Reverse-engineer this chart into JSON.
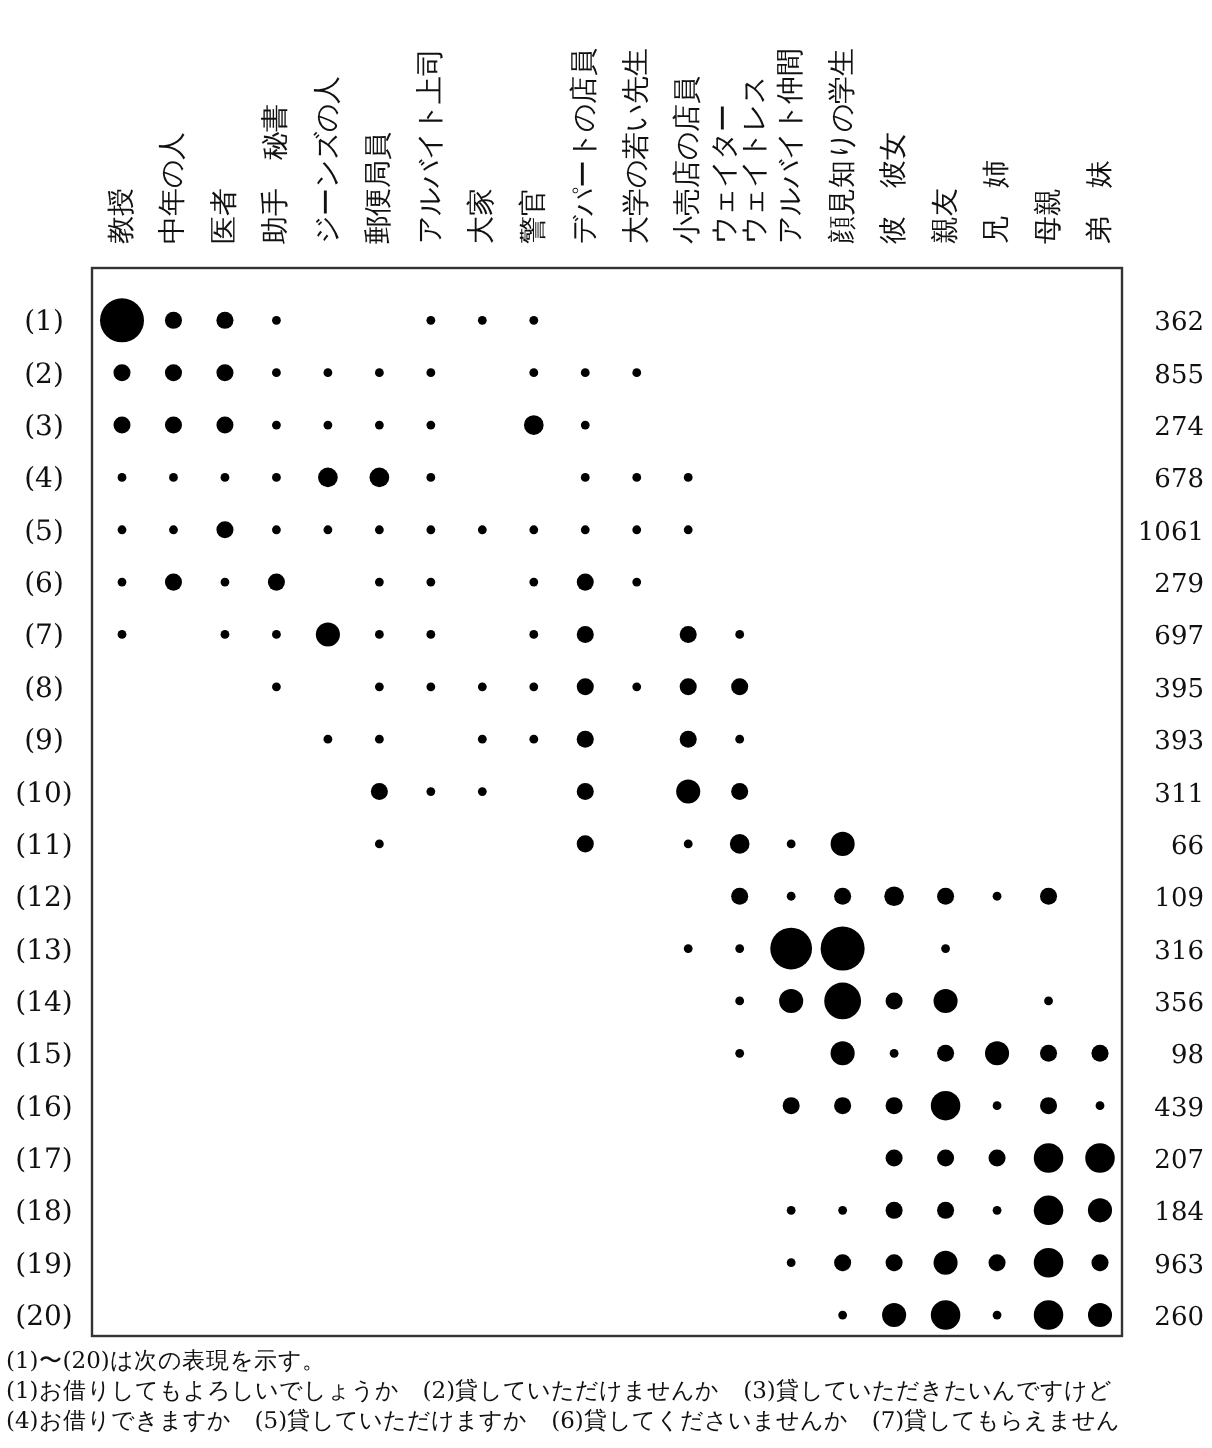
{
  "chart_data": {
    "type": "bubble",
    "categories": [
      "教授",
      "中年の人",
      "医者",
      "助手　秘書",
      "ジーンズの人",
      "郵便局員",
      "アルバイト上司",
      "大家",
      "警官",
      "デパートの店員",
      "大学の若い先生",
      "小売店の店員",
      "ウェイターウェイトレス",
      "アルバイト仲間",
      "顔見知りの学生",
      "彼　彼女",
      "親友",
      "兄　姉",
      "母親",
      "弟　妹"
    ],
    "ylim": [
      20.4,
      0
    ],
    "yticks": [
      {
        "value": 1,
        "label": "(1)"
      },
      {
        "value": 2,
        "label": "(2)"
      },
      {
        "value": 3,
        "label": "(3)"
      },
      {
        "value": 4,
        "label": "(4)"
      },
      {
        "value": 5,
        "label": "(5)"
      },
      {
        "value": 6,
        "label": "(6)"
      },
      {
        "value": 7,
        "label": "(7)"
      },
      {
        "value": 8,
        "label": "(8)"
      },
      {
        "value": 9,
        "label": "(9)"
      },
      {
        "value": 10,
        "label": "(10)"
      },
      {
        "value": 11,
        "label": "(11)"
      },
      {
        "value": 12,
        "label": "(12)"
      },
      {
        "value": 13,
        "label": "(13)"
      },
      {
        "value": 14,
        "label": "(14)"
      },
      {
        "value": 15,
        "label": "(15)"
      },
      {
        "value": 16,
        "label": "(16)"
      },
      {
        "value": 17,
        "label": "(17)"
      },
      {
        "value": 18,
        "label": "(18)"
      },
      {
        "value": 19,
        "label": "(19)"
      },
      {
        "value": 20,
        "label": "(20)"
      }
    ],
    "y2_categories": [
      "362",
      "855",
      "274",
      "678",
      "1061",
      "279",
      "697",
      "395",
      "393",
      "311",
      "66",
      "109",
      "316",
      "356",
      "98",
      "439",
      "207",
      "184",
      "963",
      "260"
    ],
    "series": [
      {
        "color": "#000000",
        "values": [
          1,
          1,
          1,
          1,
          null,
          null,
          1,
          1,
          1,
          null,
          null,
          null,
          null,
          null,
          null,
          null,
          null,
          null,
          null,
          null
        ],
        "sizes": [
          1,
          0.15,
          0.15,
          0.04,
          null,
          null,
          0.04,
          0.04,
          0.04,
          null,
          null,
          null,
          null,
          null,
          null,
          null,
          null,
          null,
          null,
          null
        ]
      },
      {
        "color": "#000000",
        "values": [
          2,
          2,
          2,
          2,
          2,
          2,
          2,
          null,
          2,
          2,
          2,
          null,
          null,
          null,
          null,
          null,
          null,
          null,
          null,
          null
        ],
        "sizes": [
          0.15,
          0.15,
          0.15,
          0.04,
          0.04,
          0.04,
          0.04,
          null,
          0.04,
          0.04,
          0.04,
          null,
          null,
          null,
          null,
          null,
          null,
          null,
          null,
          null
        ]
      },
      {
        "color": "#000000",
        "values": [
          3,
          3,
          3,
          3,
          3,
          3,
          3,
          null,
          3,
          3,
          null,
          null,
          null,
          null,
          null,
          null,
          null,
          null,
          null,
          null
        ],
        "sizes": [
          0.15,
          0.15,
          0.15,
          0.04,
          0.04,
          0.04,
          0.04,
          null,
          0.2,
          0.04,
          null,
          null,
          null,
          null,
          null,
          null,
          null,
          null,
          null,
          null
        ]
      },
      {
        "color": "#000000",
        "values": [
          4,
          4,
          4,
          4,
          4,
          4,
          4,
          null,
          null,
          4,
          4,
          4,
          null,
          null,
          null,
          null,
          null,
          null,
          null,
          null
        ],
        "sizes": [
          0.04,
          0.04,
          0.04,
          0.04,
          0.2,
          0.2,
          0.04,
          null,
          null,
          0.04,
          0.04,
          0.04,
          null,
          null,
          null,
          null,
          null,
          null,
          null,
          null
        ]
      },
      {
        "color": "#000000",
        "values": [
          5,
          5,
          5,
          5,
          5,
          5,
          5,
          5,
          5,
          5,
          5,
          5,
          null,
          null,
          null,
          null,
          null,
          null,
          null,
          null
        ],
        "sizes": [
          0.04,
          0.04,
          0.15,
          0.04,
          0.04,
          0.04,
          0.04,
          0.04,
          0.04,
          0.04,
          0.04,
          0.04,
          null,
          null,
          null,
          null,
          null,
          null,
          null,
          null
        ]
      },
      {
        "color": "#000000",
        "values": [
          6,
          6,
          6,
          6,
          null,
          6,
          6,
          null,
          6,
          6,
          6,
          null,
          null,
          null,
          null,
          null,
          null,
          null,
          null,
          null
        ],
        "sizes": [
          0.04,
          0.15,
          0.04,
          0.15,
          null,
          0.04,
          0.04,
          null,
          0.04,
          0.15,
          0.04,
          null,
          null,
          null,
          null,
          null,
          null,
          null,
          null,
          null
        ]
      },
      {
        "color": "#000000",
        "values": [
          7,
          null,
          7,
          7,
          7,
          7,
          7,
          null,
          7,
          7,
          null,
          7,
          7,
          null,
          null,
          null,
          null,
          null,
          null,
          null
        ],
        "sizes": [
          0.04,
          null,
          0.04,
          0.04,
          0.3,
          0.04,
          0.04,
          null,
          0.04,
          0.15,
          null,
          0.15,
          0.04,
          null,
          null,
          null,
          null,
          null,
          null,
          null
        ]
      },
      {
        "color": "#000000",
        "values": [
          null,
          null,
          null,
          8,
          null,
          8,
          8,
          8,
          8,
          8,
          8,
          8,
          8,
          null,
          null,
          null,
          null,
          null,
          null,
          null
        ],
        "sizes": [
          null,
          null,
          null,
          0.04,
          null,
          0.04,
          0.04,
          0.04,
          0.04,
          0.15,
          0.04,
          0.15,
          0.15,
          null,
          null,
          null,
          null,
          null,
          null,
          null
        ]
      },
      {
        "color": "#000000",
        "values": [
          null,
          null,
          null,
          null,
          9,
          9,
          null,
          9,
          9,
          9,
          null,
          9,
          9,
          null,
          null,
          null,
          null,
          null,
          null,
          null
        ],
        "sizes": [
          null,
          null,
          null,
          null,
          0.04,
          0.04,
          null,
          0.04,
          0.04,
          0.15,
          null,
          0.15,
          0.04,
          null,
          null,
          null,
          null,
          null,
          null,
          null
        ]
      },
      {
        "color": "#000000",
        "values": [
          null,
          null,
          null,
          null,
          null,
          10,
          10,
          10,
          null,
          10,
          null,
          10,
          10,
          null,
          null,
          null,
          null,
          null,
          null,
          null
        ],
        "sizes": [
          null,
          null,
          null,
          null,
          null,
          0.15,
          0.04,
          0.04,
          null,
          0.15,
          null,
          0.3,
          0.15,
          null,
          null,
          null,
          null,
          null,
          null,
          null
        ]
      },
      {
        "color": "#000000",
        "values": [
          null,
          null,
          null,
          null,
          null,
          11,
          null,
          null,
          null,
          11,
          null,
          11,
          11,
          11,
          11,
          null,
          null,
          null,
          null,
          null
        ],
        "sizes": [
          null,
          null,
          null,
          null,
          null,
          0.04,
          null,
          null,
          null,
          0.15,
          null,
          0.04,
          0.2,
          0.04,
          0.3,
          null,
          null,
          null,
          null,
          null
        ]
      },
      {
        "color": "#000000",
        "values": [
          null,
          null,
          null,
          null,
          null,
          null,
          null,
          null,
          null,
          null,
          null,
          null,
          12,
          12,
          12,
          12,
          12,
          12,
          12,
          null
        ],
        "sizes": [
          null,
          null,
          null,
          null,
          null,
          null,
          null,
          null,
          null,
          null,
          null,
          null,
          0.15,
          0.04,
          0.15,
          0.2,
          0.15,
          0.04,
          0.15,
          null
        ]
      },
      {
        "color": "#000000",
        "values": [
          null,
          null,
          null,
          null,
          null,
          null,
          null,
          null,
          null,
          null,
          null,
          13,
          13,
          13,
          13,
          null,
          13,
          null,
          null,
          null
        ],
        "sizes": [
          null,
          null,
          null,
          null,
          null,
          null,
          null,
          null,
          null,
          null,
          null,
          0.04,
          0.04,
          0.9,
          1,
          null,
          0.04,
          null,
          null,
          null
        ]
      },
      {
        "color": "#000000",
        "values": [
          null,
          null,
          null,
          null,
          null,
          null,
          null,
          null,
          null,
          null,
          null,
          null,
          14,
          14,
          14,
          14,
          14,
          null,
          14,
          null
        ],
        "sizes": [
          null,
          null,
          null,
          null,
          null,
          null,
          null,
          null,
          null,
          null,
          null,
          null,
          0.04,
          0.3,
          0.7,
          0.15,
          0.3,
          null,
          0.04,
          null
        ]
      },
      {
        "color": "#000000",
        "values": [
          null,
          null,
          null,
          null,
          null,
          null,
          null,
          null,
          null,
          null,
          null,
          null,
          15,
          null,
          15,
          15,
          15,
          15,
          15,
          15
        ],
        "sizes": [
          null,
          null,
          null,
          null,
          null,
          null,
          null,
          null,
          null,
          null,
          null,
          null,
          0.04,
          null,
          0.3,
          0.04,
          0.15,
          0.3,
          0.15,
          0.15
        ]
      },
      {
        "color": "#000000",
        "values": [
          null,
          null,
          null,
          null,
          null,
          null,
          null,
          null,
          null,
          null,
          null,
          null,
          null,
          16,
          16,
          16,
          16,
          16,
          16,
          16
        ],
        "sizes": [
          null,
          null,
          null,
          null,
          null,
          null,
          null,
          null,
          null,
          null,
          null,
          null,
          null,
          0.15,
          0.15,
          0.15,
          0.45,
          0.04,
          0.15,
          0.04
        ]
      },
      {
        "color": "#000000",
        "values": [
          null,
          null,
          null,
          null,
          null,
          null,
          null,
          null,
          null,
          null,
          null,
          null,
          null,
          null,
          null,
          17,
          17,
          17,
          17,
          17
        ],
        "sizes": [
          null,
          null,
          null,
          null,
          null,
          null,
          null,
          null,
          null,
          null,
          null,
          null,
          null,
          null,
          null,
          0.15,
          0.15,
          0.15,
          0.45,
          0.45
        ]
      },
      {
        "color": "#000000",
        "values": [
          null,
          null,
          null,
          null,
          null,
          null,
          null,
          null,
          null,
          null,
          null,
          null,
          null,
          18,
          18,
          18,
          18,
          18,
          18,
          18
        ],
        "sizes": [
          null,
          null,
          null,
          null,
          null,
          null,
          null,
          null,
          null,
          null,
          null,
          null,
          null,
          0.04,
          0.04,
          0.15,
          0.15,
          0.04,
          0.45,
          0.3
        ]
      },
      {
        "color": "#000000",
        "values": [
          null,
          null,
          null,
          null,
          null,
          null,
          null,
          null,
          null,
          null,
          null,
          null,
          null,
          19,
          19,
          19,
          19,
          19,
          19,
          19
        ],
        "sizes": [
          null,
          null,
          null,
          null,
          null,
          null,
          null,
          null,
          null,
          null,
          null,
          null,
          null,
          0.04,
          0.15,
          0.15,
          0.3,
          0.15,
          0.45,
          0.15
        ]
      },
      {
        "color": "#000000",
        "values": [
          null,
          null,
          null,
          null,
          null,
          null,
          null,
          null,
          null,
          null,
          null,
          null,
          null,
          null,
          20,
          20,
          20,
          20,
          20,
          20
        ],
        "sizes": [
          null,
          null,
          null,
          null,
          null,
          null,
          null,
          null,
          null,
          null,
          null,
          null,
          null,
          null,
          0.04,
          0.3,
          0.45,
          0.04,
          0.45,
          0.3
        ]
      }
    ],
    "annotations": [
      "(1)〜(20)は次の表現を示す。",
      "(1)お借りしてもよろしいでしょうか　(2)貸していただけませんか　(3)貸していただきたいんですけど",
      "(4)お借りできますか　(5)貸していただけますか　(6)貸してくださいませんか　(7)貸してもらえません"
    ]
  }
}
